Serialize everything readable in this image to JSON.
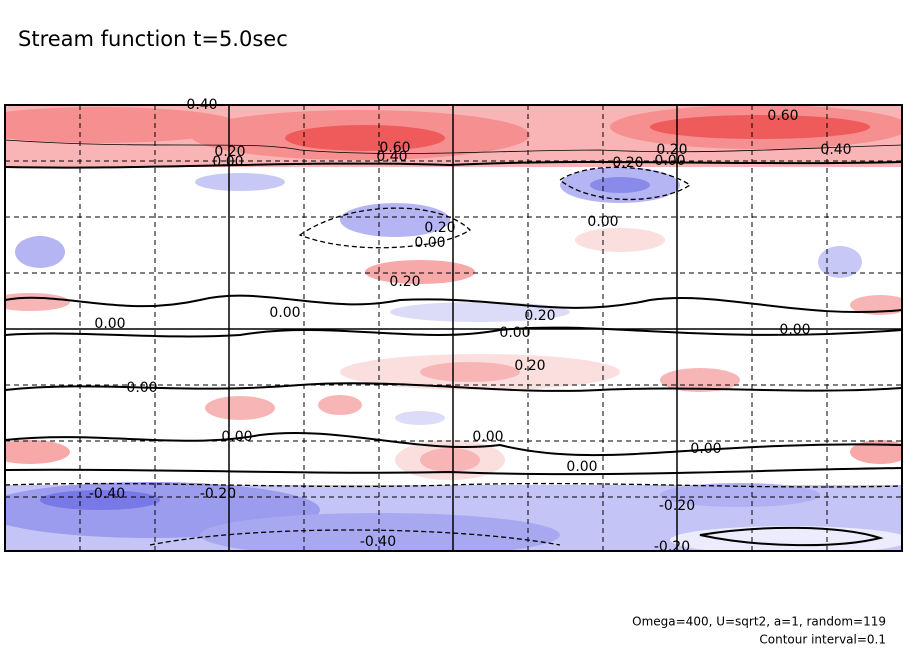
{
  "chart_data": {
    "type": "contour",
    "title": "Stream function t=5.0sec",
    "contour_labels": [
      "0.40",
      "0.60",
      "0.20",
      "0.00",
      "0.40",
      "0.60",
      "0.40",
      "0.20",
      "0.00",
      "0.20",
      "0.20",
      "0.00",
      "0.00",
      "0.20",
      "0.00",
      "0.20",
      "0.00",
      "0.00",
      "0.00",
      "0.20",
      "0.00",
      "0.00",
      "0.00",
      "0.00",
      "0.00",
      "-0.40",
      "-0.20",
      "-0.20",
      "-0.40",
      "-0.20"
    ],
    "notes": [
      "Omega=400, U=sqrt2, a=1, random=119",
      "Contour interval=0.1"
    ]
  }
}
